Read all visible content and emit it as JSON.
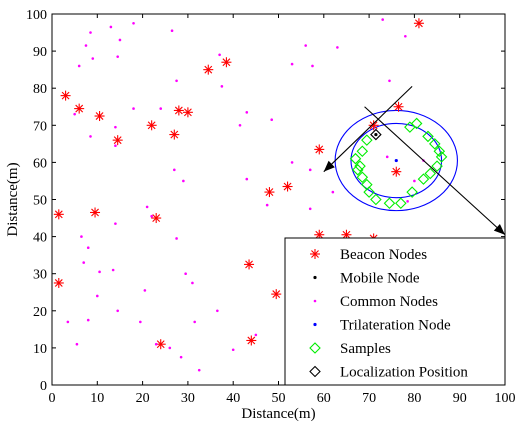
{
  "chart_data": {
    "type": "scatter",
    "xlabel": "Distance(m)",
    "ylabel": "Distance(m)",
    "xlim": [
      0,
      100
    ],
    "ylim": [
      0,
      100
    ],
    "xticks": [
      "0",
      "10",
      "20",
      "30",
      "40",
      "50",
      "60",
      "70",
      "80",
      "90",
      "100"
    ],
    "yticks": [
      "0",
      "10",
      "20",
      "30",
      "40",
      "50",
      "60",
      "70",
      "80",
      "90",
      "100"
    ],
    "grid": false,
    "legend_position": "bottom-right",
    "series": [
      {
        "name": "Beacon Nodes",
        "marker": "asterisk",
        "color": "#ff0000",
        "points": [
          [
            3,
            78
          ],
          [
            6,
            74.5
          ],
          [
            10.5,
            72.5
          ],
          [
            14.5,
            66
          ],
          [
            22,
            70
          ],
          [
            27,
            67.5
          ],
          [
            28,
            74
          ],
          [
            30,
            73.5
          ],
          [
            34.5,
            85
          ],
          [
            38.5,
            87
          ],
          [
            1.5,
            46
          ],
          [
            9.5,
            46.5
          ],
          [
            23,
            45
          ],
          [
            1.5,
            27.5
          ],
          [
            24,
            11
          ],
          [
            43.5,
            32.5
          ],
          [
            44,
            12
          ],
          [
            48,
            52
          ],
          [
            52,
            53.5
          ],
          [
            59,
            63.5
          ],
          [
            59,
            40.5
          ],
          [
            65,
            40.5
          ],
          [
            71,
            39.5
          ],
          [
            71,
            70
          ],
          [
            76.5,
            75
          ],
          [
            76,
            57.5
          ],
          [
            49.5,
            24.5
          ],
          [
            81,
            97.5
          ]
        ]
      },
      {
        "name": "Mobile Node",
        "marker": "dot",
        "color": "#000000",
        "points": [
          [
            71.5,
            67.5
          ]
        ]
      },
      {
        "name": "Common Nodes",
        "marker": "small-dot",
        "color": "#ff00ff",
        "points": [
          [
            8.5,
            95
          ],
          [
            13,
            96.5
          ],
          [
            18,
            97.5
          ],
          [
            26.5,
            95.5
          ],
          [
            15,
            93
          ],
          [
            7.5,
            91.5
          ],
          [
            14.5,
            88.5
          ],
          [
            9,
            88
          ],
          [
            6,
            86
          ],
          [
            18,
            74.5
          ],
          [
            24,
            74.5
          ],
          [
            14,
            69.5
          ],
          [
            8.5,
            67
          ],
          [
            14,
            64.5
          ],
          [
            5,
            73
          ],
          [
            27.5,
            82
          ],
          [
            37,
            89
          ],
          [
            37.5,
            80.5
          ],
          [
            41.5,
            70
          ],
          [
            43,
            73.5
          ],
          [
            56,
            91.5
          ],
          [
            53,
            86.5
          ],
          [
            57.5,
            86
          ],
          [
            63,
            91
          ],
          [
            73,
            98.5
          ],
          [
            74.5,
            82
          ],
          [
            78,
            94
          ],
          [
            48.5,
            71.5
          ],
          [
            53,
            60
          ],
          [
            57,
            58
          ],
          [
            43,
            55.5
          ],
          [
            27,
            58
          ],
          [
            21,
            48
          ],
          [
            29,
            55
          ],
          [
            22,
            45.5
          ],
          [
            6.5,
            40
          ],
          [
            8,
            37
          ],
          [
            14,
            43.5
          ],
          [
            7,
            33
          ],
          [
            10.5,
            30.5
          ],
          [
            20.5,
            25.5
          ],
          [
            13.5,
            31
          ],
          [
            29.5,
            30
          ],
          [
            27.5,
            39.5
          ],
          [
            31,
            27.5
          ],
          [
            31.5,
            17
          ],
          [
            10,
            24
          ],
          [
            3.5,
            17
          ],
          [
            8,
            17.5
          ],
          [
            14.5,
            20
          ],
          [
            19.5,
            17
          ],
          [
            5.5,
            11
          ],
          [
            23,
            11
          ],
          [
            26,
            10
          ],
          [
            28.5,
            7.5
          ],
          [
            32.5,
            4
          ],
          [
            40,
            9.5
          ],
          [
            45,
            13.5
          ],
          [
            36.5,
            20
          ],
          [
            54,
            20
          ],
          [
            55.5,
            17.5
          ],
          [
            64,
            37
          ],
          [
            67,
            33.5
          ],
          [
            57,
            47.5
          ],
          [
            62,
            52
          ],
          [
            47.5,
            48.5
          ],
          [
            78.5,
            49.5
          ],
          [
            80,
            55
          ],
          [
            82,
            60.5
          ],
          [
            74,
            61.5
          ]
        ]
      },
      {
        "name": "Trilateration Node",
        "marker": "dot",
        "color": "#0000ff",
        "points": [
          [
            76,
            60.5
          ]
        ]
      },
      {
        "name": "Samples",
        "marker": "diamond",
        "color": "#00ee00",
        "points": [
          [
            79,
            69.5
          ],
          [
            80.5,
            70.5
          ],
          [
            83,
            67
          ],
          [
            84.5,
            65
          ],
          [
            85.5,
            63
          ],
          [
            86,
            61.5
          ],
          [
            85,
            59
          ],
          [
            69.5,
            66
          ],
          [
            68.5,
            63
          ],
          [
            67,
            61
          ],
          [
            68,
            59
          ],
          [
            68.5,
            56
          ],
          [
            69.5,
            54
          ],
          [
            70,
            52
          ],
          [
            71.5,
            50
          ],
          [
            74.5,
            49
          ],
          [
            77,
            49
          ],
          [
            79.5,
            52
          ],
          [
            82,
            55.5
          ],
          [
            83.5,
            57
          ],
          [
            67.5,
            58
          ]
        ]
      },
      {
        "name": "Localization Position",
        "marker": "open-diamond",
        "color": "#000000",
        "points": [
          [
            71.5,
            67.5
          ]
        ]
      }
    ],
    "circles": [
      {
        "center": [
          76,
          60.5
        ],
        "radius": 13.5,
        "color": "#0000ff"
      },
      {
        "center": [
          76,
          60.5
        ],
        "radius": 10,
        "color": "#0000ff"
      }
    ],
    "arrows": [
      {
        "from": [
          79.5,
          80.5
        ],
        "to": [
          60,
          57.5
        ],
        "color": "#000000"
      },
      {
        "from": [
          69,
          75
        ],
        "to": [
          100,
          40.5
        ],
        "color": "#000000"
      }
    ],
    "legend_entries": [
      "Beacon Nodes",
      "Mobile Node",
      "Common Nodes",
      "Trilateration Node",
      "Samples",
      "Localization Position"
    ]
  }
}
